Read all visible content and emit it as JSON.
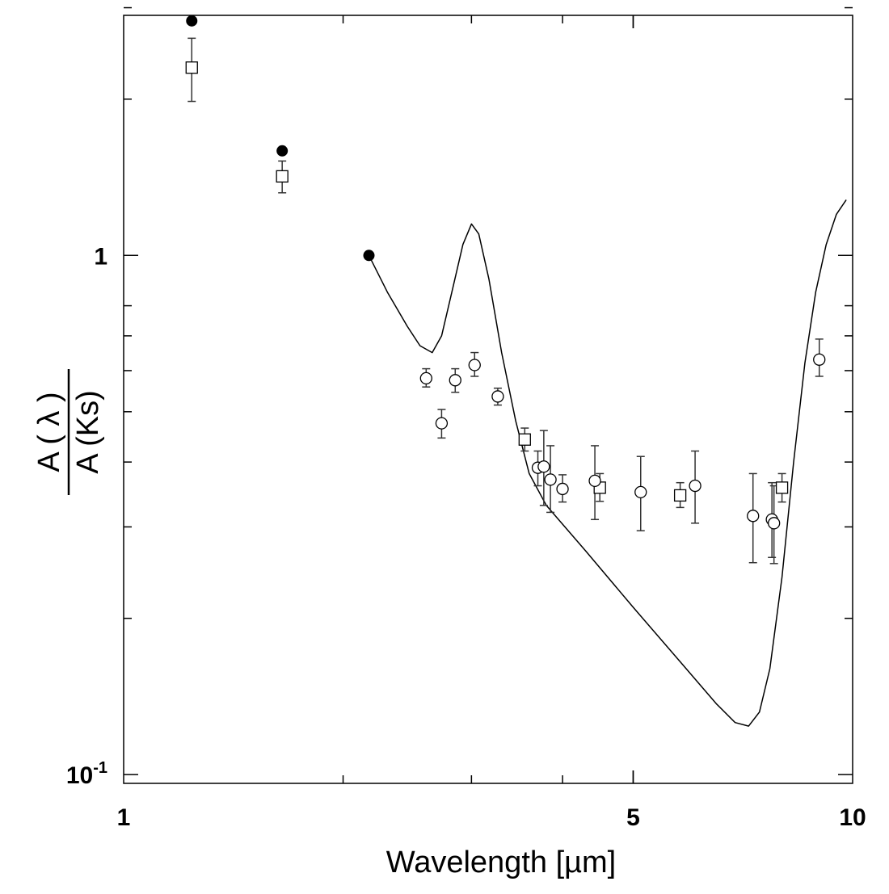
{
  "chart_data": {
    "type": "scatter",
    "xlabel": "Wavelength [µm]",
    "ylabel": {
      "numerator": "A ( λ )",
      "denominator": "A (Ks)"
    },
    "xscale": "log",
    "yscale": "log",
    "xlim": [
      1,
      10
    ],
    "ylim": [
      0.0962,
      2.9
    ],
    "x_tick_labels": [
      {
        "value": 1,
        "label": "1"
      },
      {
        "value": 5,
        "label": "5"
      },
      {
        "value": 10,
        "label": "10"
      }
    ],
    "y_tick_labels": [
      {
        "value": 1,
        "label": "1",
        "sup": ""
      },
      {
        "value": 0.1,
        "label": "10",
        "sup": "-1"
      }
    ],
    "x_minor_ticks": [
      2,
      3,
      4,
      5
    ],
    "y_minor_ticks": [
      2,
      3,
      0.8,
      0.7,
      0.6,
      0.5,
      0.4,
      0.3,
      0.2
    ],
    "grid": false,
    "series": [
      {
        "marker": "filled-circle",
        "points": [
          {
            "x": 1.24,
            "y": 2.83
          },
          {
            "x": 1.65,
            "y": 1.59
          },
          {
            "x": 2.17,
            "y": 1.0
          }
        ]
      },
      {
        "marker": "open-square",
        "points": [
          {
            "x": 1.24,
            "y": 2.3,
            "ylo": 1.98,
            "yhi": 2.62
          },
          {
            "x": 1.65,
            "y": 1.42,
            "ylo": 1.32,
            "yhi": 1.52
          },
          {
            "x": 3.55,
            "y": 0.442,
            "ylo": 0.42,
            "yhi": 0.465
          },
          {
            "x": 4.5,
            "y": 0.357,
            "ylo": 0.336,
            "yhi": 0.38
          },
          {
            "x": 5.8,
            "y": 0.345,
            "ylo": 0.327,
            "yhi": 0.365
          },
          {
            "x": 8.0,
            "y": 0.357,
            "ylo": 0.335,
            "yhi": 0.38
          }
        ]
      },
      {
        "marker": "open-circle",
        "points": [
          {
            "x": 2.6,
            "y": 0.58,
            "ylo": 0.558,
            "yhi": 0.605
          },
          {
            "x": 2.73,
            "y": 0.475,
            "ylo": 0.445,
            "yhi": 0.505
          },
          {
            "x": 2.85,
            "y": 0.575,
            "ylo": 0.545,
            "yhi": 0.605
          },
          {
            "x": 3.03,
            "y": 0.615,
            "ylo": 0.585,
            "yhi": 0.65
          },
          {
            "x": 3.26,
            "y": 0.535,
            "ylo": 0.515,
            "yhi": 0.555
          },
          {
            "x": 3.7,
            "y": 0.39,
            "ylo": 0.36,
            "yhi": 0.42
          },
          {
            "x": 3.77,
            "y": 0.392,
            "ylo": 0.33,
            "yhi": 0.46
          },
          {
            "x": 3.85,
            "y": 0.37,
            "ylo": 0.32,
            "yhi": 0.43
          },
          {
            "x": 4.0,
            "y": 0.355,
            "ylo": 0.335,
            "yhi": 0.378
          },
          {
            "x": 4.43,
            "y": 0.368,
            "ylo": 0.31,
            "yhi": 0.43
          },
          {
            "x": 5.12,
            "y": 0.35,
            "ylo": 0.295,
            "yhi": 0.41
          },
          {
            "x": 6.08,
            "y": 0.36,
            "ylo": 0.305,
            "yhi": 0.42
          },
          {
            "x": 7.3,
            "y": 0.315,
            "ylo": 0.256,
            "yhi": 0.38
          },
          {
            "x": 7.75,
            "y": 0.31,
            "ylo": 0.262,
            "yhi": 0.365
          },
          {
            "x": 7.8,
            "y": 0.305,
            "ylo": 0.255,
            "yhi": 0.36
          },
          {
            "x": 9.0,
            "y": 0.63,
            "ylo": 0.585,
            "yhi": 0.69
          }
        ]
      },
      {
        "marker": "line",
        "points": [
          {
            "x": 2.17,
            "y": 1.0
          },
          {
            "x": 2.3,
            "y": 0.85
          },
          {
            "x": 2.45,
            "y": 0.73
          },
          {
            "x": 2.55,
            "y": 0.67
          },
          {
            "x": 2.65,
            "y": 0.65
          },
          {
            "x": 2.73,
            "y": 0.7
          },
          {
            "x": 2.82,
            "y": 0.85
          },
          {
            "x": 2.92,
            "y": 1.05
          },
          {
            "x": 3.0,
            "y": 1.15
          },
          {
            "x": 3.07,
            "y": 1.1
          },
          {
            "x": 3.17,
            "y": 0.9
          },
          {
            "x": 3.3,
            "y": 0.65
          },
          {
            "x": 3.45,
            "y": 0.48
          },
          {
            "x": 3.6,
            "y": 0.38
          },
          {
            "x": 3.8,
            "y": 0.33
          },
          {
            "x": 4.3,
            "y": 0.27
          },
          {
            "x": 5.0,
            "y": 0.21
          },
          {
            "x": 5.8,
            "y": 0.165
          },
          {
            "x": 6.5,
            "y": 0.137
          },
          {
            "x": 6.9,
            "y": 0.126
          },
          {
            "x": 7.2,
            "y": 0.124
          },
          {
            "x": 7.45,
            "y": 0.132
          },
          {
            "x": 7.7,
            "y": 0.16
          },
          {
            "x": 8.0,
            "y": 0.24
          },
          {
            "x": 8.3,
            "y": 0.4
          },
          {
            "x": 8.6,
            "y": 0.62
          },
          {
            "x": 8.9,
            "y": 0.85
          },
          {
            "x": 9.2,
            "y": 1.05
          },
          {
            "x": 9.5,
            "y": 1.2
          },
          {
            "x": 9.8,
            "y": 1.28
          }
        ]
      }
    ]
  }
}
